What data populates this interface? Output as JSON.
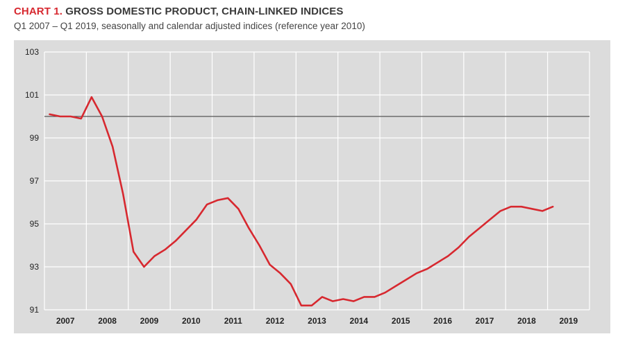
{
  "header": {
    "title_prefix": "CHART 1.",
    "title_main": "GROSS DOMESTIC PRODUCT, CHAIN-LINKED INDICES",
    "subtitle": "Q1 2007 – Q1 2019, seasonally and calendar adjusted indices (reference year 2010)"
  },
  "colors": {
    "accent": "#d7282f",
    "panel_background": "#dcdcdc",
    "grid": "#ffffff",
    "reference_line": "#555555"
  },
  "chart_data": {
    "type": "line",
    "title": "GROSS DOMESTIC PRODUCT, CHAIN-LINKED INDICES",
    "subtitle": "Q1 2007 – Q1 2019, seasonally and calendar adjusted indices (reference year 2010)",
    "xlabel": "",
    "ylabel": "",
    "ylim": [
      91,
      103
    ],
    "yticks": [
      "91",
      "93",
      "95",
      "97",
      "99",
      "101",
      "103"
    ],
    "xticks": [
      "2007",
      "2008",
      "2009",
      "2010",
      "2011",
      "2012",
      "2013",
      "2014",
      "2015",
      "2016",
      "2017",
      "2018",
      "2019"
    ],
    "reference_line": 100,
    "grid": true,
    "legend": "none",
    "series": [
      {
        "color": "#d7282f",
        "x": [
          "2007 Q1",
          "2007 Q2",
          "2007 Q3",
          "2007 Q4",
          "2008 Q1",
          "2008 Q2",
          "2008 Q3",
          "2008 Q4",
          "2009 Q1",
          "2009 Q2",
          "2009 Q3",
          "2009 Q4",
          "2010 Q1",
          "2010 Q2",
          "2010 Q3",
          "2010 Q4",
          "2011 Q1",
          "2011 Q2",
          "2011 Q3",
          "2011 Q4",
          "2012 Q1",
          "2012 Q2",
          "2012 Q3",
          "2012 Q4",
          "2013 Q1",
          "2013 Q2",
          "2013 Q3",
          "2013 Q4",
          "2014 Q1",
          "2014 Q2",
          "2014 Q3",
          "2014 Q4",
          "2015 Q1",
          "2015 Q2",
          "2015 Q3",
          "2015 Q4",
          "2016 Q1",
          "2016 Q2",
          "2016 Q3",
          "2016 Q4",
          "2017 Q1",
          "2017 Q2",
          "2017 Q3",
          "2017 Q4",
          "2018 Q1",
          "2018 Q2",
          "2018 Q3",
          "2018 Q4",
          "2019 Q1"
        ],
        "values": [
          100.1,
          100.0,
          100.0,
          99.9,
          100.9,
          100.0,
          98.6,
          96.4,
          93.7,
          93.0,
          93.5,
          93.8,
          94.2,
          94.7,
          95.2,
          95.9,
          96.1,
          96.2,
          95.7,
          94.8,
          94.0,
          93.1,
          92.7,
          92.2,
          91.2,
          91.2,
          91.6,
          91.4,
          91.5,
          91.4,
          91.6,
          91.6,
          91.8,
          92.1,
          92.4,
          92.7,
          92.9,
          93.2,
          93.5,
          93.9,
          94.4,
          94.8,
          95.2,
          95.6,
          95.8,
          95.8,
          95.7,
          95.6,
          95.8
        ]
      }
    ]
  }
}
